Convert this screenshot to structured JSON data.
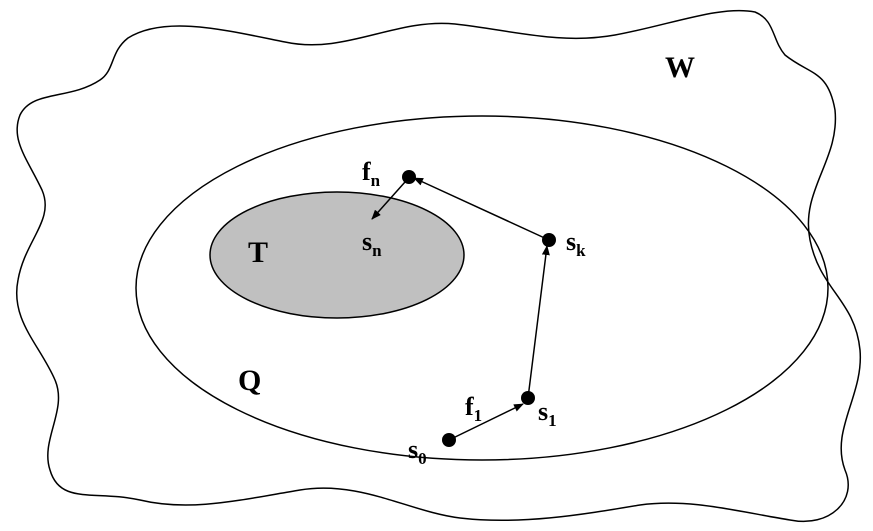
{
  "diagram": {
    "colors": {
      "stroke": "#000000",
      "target_fill": "#c0c0c0",
      "background": "#ffffff"
    },
    "regions": {
      "outer": "W",
      "middle": "Q",
      "target": "T"
    },
    "states": {
      "s0": {
        "base": "s",
        "sub": "0"
      },
      "s1": {
        "base": "s",
        "sub": "1"
      },
      "sk": {
        "base": "s",
        "sub": "k"
      },
      "sn": {
        "base": "s",
        "sub": "n"
      }
    },
    "actions": {
      "f1": {
        "base": "f",
        "sub": "1"
      },
      "fn": {
        "base": "f",
        "sub": "n"
      }
    }
  }
}
